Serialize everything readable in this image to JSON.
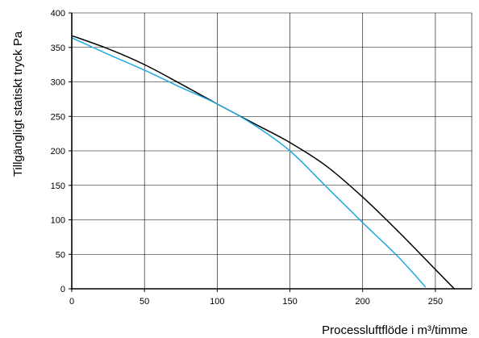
{
  "chart_data": {
    "type": "line",
    "title": "",
    "xlabel": "Processluftflöde i m³/timme",
    "ylabel": "Tillgängligt statiskt tryck Pa",
    "xlim": [
      0,
      275
    ],
    "ylim": [
      0,
      400
    ],
    "x_ticks": [
      0,
      50,
      100,
      150,
      200,
      250
    ],
    "y_ticks": [
      0,
      50,
      100,
      150,
      200,
      250,
      300,
      350,
      400
    ],
    "grid": true,
    "legend": "none",
    "series": [
      {
        "color": "#000000",
        "x": [
          0,
          25,
          50,
          75,
          100,
          125,
          150,
          175,
          200,
          225,
          250,
          263
        ],
        "y": [
          367,
          348,
          325,
          297,
          268,
          240,
          212,
          178,
          133,
          82,
          28,
          0
        ]
      },
      {
        "color": "#1fa9e1",
        "x": [
          0,
          25,
          50,
          75,
          100,
          125,
          150,
          175,
          200,
          225,
          243
        ],
        "y": [
          364,
          340,
          317,
          292,
          268,
          238,
          200,
          148,
          96,
          45,
          3
        ]
      }
    ]
  }
}
